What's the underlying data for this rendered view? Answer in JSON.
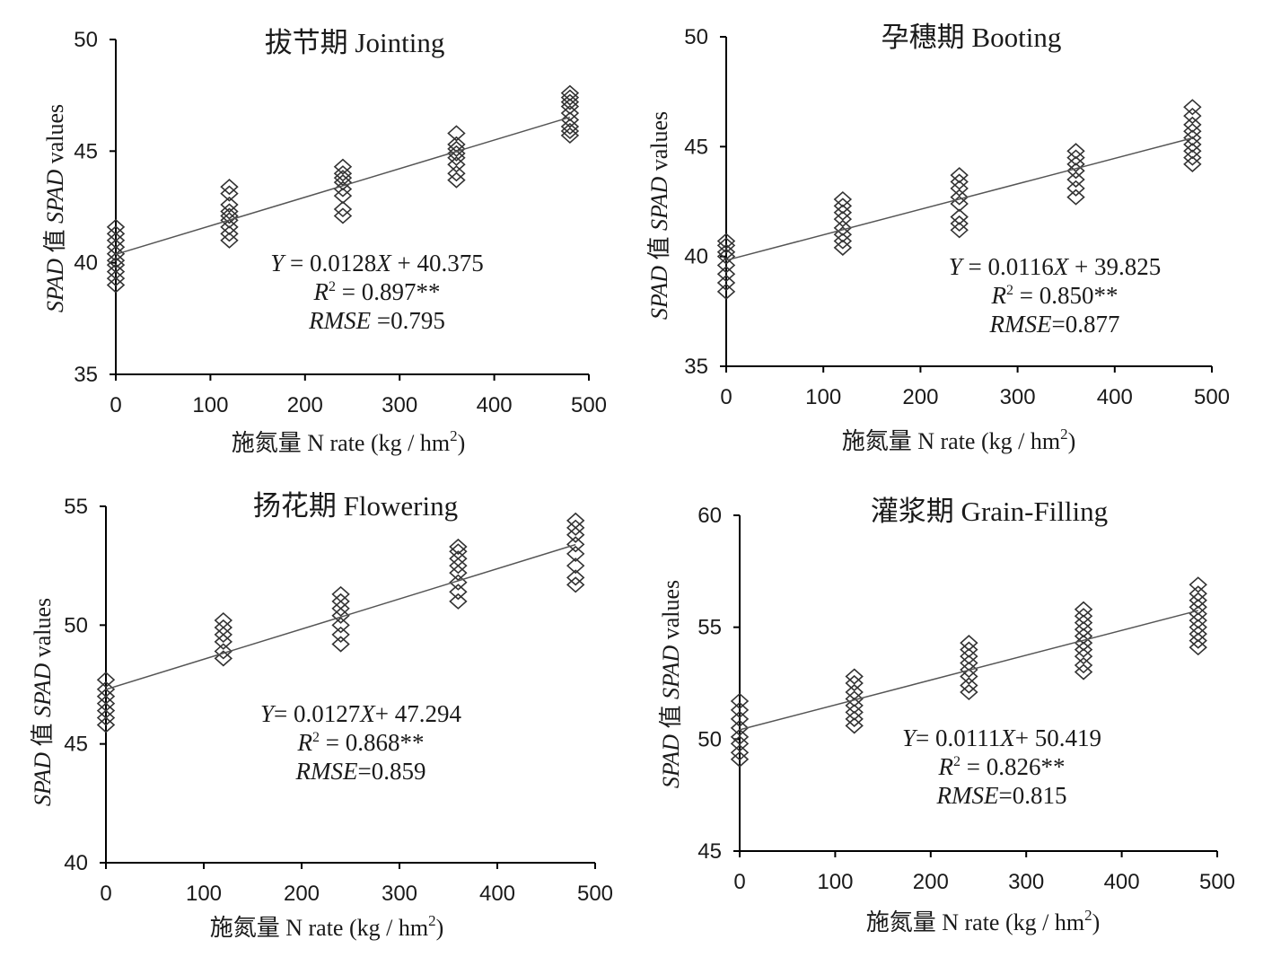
{
  "chart_data": [
    {
      "type": "scatter",
      "title": "拔节期  Jointing",
      "xlabel": {
        "prefix": "施氮量  N rate (kg / hm",
        "sup": "2",
        "suffix": ")"
      },
      "ylabel": {
        "italic1": "SPAD",
        "mid": " 值 ",
        "italic2": "SPAD",
        "tail": " values"
      },
      "xlim": [
        0,
        500
      ],
      "ylim": [
        35,
        50
      ],
      "xticks": [
        "0",
        "100",
        "200",
        "300",
        "400",
        "500"
      ],
      "yticks": [
        "35",
        "40",
        "45",
        "50"
      ],
      "equation": {
        "y": "Y",
        "eq": " = 0.0128",
        "x": "X",
        "rest": " + 40.375"
      },
      "r2": {
        "r": "R",
        "sup": "2",
        "rest": " = 0.897**"
      },
      "rmse": {
        "label": "RMSE",
        "rest": " =0.795"
      },
      "fit": {
        "slope": 0.0128,
        "intercept": 40.375
      },
      "series": [
        {
          "x": 0,
          "values": [
            39.0,
            39.3,
            39.6,
            39.9,
            40.1,
            40.4,
            40.7,
            41.0,
            41.3,
            41.6
          ]
        },
        {
          "x": 120,
          "values": [
            41.0,
            41.3,
            41.6,
            41.9,
            42.1,
            42.3,
            42.6,
            43.1,
            43.4
          ]
        },
        {
          "x": 240,
          "values": [
            42.1,
            42.4,
            43.0,
            43.3,
            43.6,
            43.8,
            44.0,
            44.3
          ]
        },
        {
          "x": 360,
          "values": [
            43.7,
            44.0,
            44.4,
            44.7,
            44.9,
            45.1,
            45.3,
            45.8
          ]
        },
        {
          "x": 480,
          "values": [
            45.7,
            45.9,
            46.1,
            46.4,
            46.7,
            47.0,
            47.2,
            47.4,
            47.6
          ]
        }
      ]
    },
    {
      "type": "scatter",
      "title": "孕穗期  Booting",
      "xlabel": {
        "prefix": "施氮量  N rate (kg / hm",
        "sup": "2",
        "suffix": ")"
      },
      "ylabel": {
        "italic1": "SPAD",
        "mid": " 值 ",
        "italic2": "SPAD",
        "tail": " values"
      },
      "xlim": [
        0,
        500
      ],
      "ylim": [
        35,
        50
      ],
      "xticks": [
        "0",
        "100",
        "200",
        "300",
        "400",
        "500"
      ],
      "yticks": [
        "35",
        "40",
        "45",
        "50"
      ],
      "equation": {
        "y": "Y",
        "eq": " = 0.0116",
        "x": "X",
        "rest": " + 39.825"
      },
      "r2": {
        "r": "R",
        "sup": "2",
        "rest": " = 0.850**"
      },
      "rmse": {
        "label": "RMSE",
        "rest": "=0.877"
      },
      "fit": {
        "slope": 0.0116,
        "intercept": 39.825
      },
      "series": [
        {
          "x": 0,
          "values": [
            38.4,
            38.8,
            39.2,
            39.6,
            40.0,
            40.2,
            40.5,
            40.7
          ]
        },
        {
          "x": 120,
          "values": [
            40.4,
            40.7,
            41.0,
            41.3,
            41.7,
            42.0,
            42.3,
            42.6
          ]
        },
        {
          "x": 240,
          "values": [
            41.2,
            41.5,
            41.8,
            42.4,
            42.7,
            43.1,
            43.4,
            43.7
          ]
        },
        {
          "x": 360,
          "values": [
            42.7,
            43.1,
            43.5,
            43.9,
            44.2,
            44.5,
            44.8
          ]
        },
        {
          "x": 480,
          "values": [
            44.2,
            44.5,
            44.8,
            45.1,
            45.4,
            45.7,
            46.0,
            46.4,
            46.8
          ]
        }
      ]
    },
    {
      "type": "scatter",
      "title": "扬花期  Flowering",
      "xlabel": {
        "prefix": "施氮量  N rate (kg / hm",
        "sup": "2",
        "suffix": ")"
      },
      "ylabel": {
        "italic1": "SPAD",
        "mid": " 值 ",
        "italic2": "SPAD",
        "tail": " values"
      },
      "xlim": [
        0,
        500
      ],
      "ylim": [
        40,
        55
      ],
      "xticks": [
        "0",
        "100",
        "200",
        "300",
        "400",
        "500"
      ],
      "yticks": [
        "40",
        "45",
        "50",
        "55"
      ],
      "equation": {
        "y": "Y",
        "eq": "= 0.0127",
        "x": "X",
        "rest": "+ 47.294"
      },
      "r2": {
        "r": "R",
        "sup": "2",
        "rest": " = 0.868**"
      },
      "rmse": {
        "label": "RMSE",
        "rest": "=0.859"
      },
      "fit": {
        "slope": 0.0127,
        "intercept": 47.294
      },
      "series": [
        {
          "x": 0,
          "values": [
            45.8,
            46.1,
            46.4,
            46.7,
            47.0,
            47.3,
            47.7
          ]
        },
        {
          "x": 120,
          "values": [
            48.6,
            48.9,
            49.3,
            49.6,
            49.9,
            50.2
          ]
        },
        {
          "x": 240,
          "values": [
            49.2,
            49.6,
            50.0,
            50.4,
            50.7,
            51.0,
            51.3
          ]
        },
        {
          "x": 360,
          "values": [
            51.0,
            51.4,
            51.8,
            52.2,
            52.5,
            52.8,
            53.1,
            53.3
          ]
        },
        {
          "x": 480,
          "values": [
            51.7,
            52.0,
            52.5,
            53.0,
            53.4,
            53.8,
            54.1,
            54.4
          ]
        }
      ]
    },
    {
      "type": "scatter",
      "title": "灌浆期  Grain-Filling",
      "xlabel": {
        "prefix": "施氮量  N rate (kg / hm",
        "sup": "2",
        "suffix": ")"
      },
      "ylabel": {
        "italic1": "SPAD",
        "mid": " 值 ",
        "italic2": "SPAD",
        "tail": " values"
      },
      "xlim": [
        0,
        500
      ],
      "ylim": [
        45,
        60
      ],
      "xticks": [
        "0",
        "100",
        "200",
        "300",
        "400",
        "500"
      ],
      "yticks": [
        "45",
        "50",
        "55",
        "60"
      ],
      "equation": {
        "y": "Y",
        "eq": "= 0.0111",
        "x": "X",
        "rest": "+ 50.419"
      },
      "r2": {
        "r": "R",
        "sup": "2",
        "rest": " = 0.826**"
      },
      "rmse": {
        "label": "RMSE",
        "rest": "=0.815"
      },
      "fit": {
        "slope": 0.0111,
        "intercept": 50.419
      },
      "series": [
        {
          "x": 0,
          "values": [
            49.1,
            49.4,
            49.8,
            50.1,
            50.5,
            50.9,
            51.3,
            51.7
          ]
        },
        {
          "x": 120,
          "values": [
            50.6,
            50.9,
            51.2,
            51.5,
            51.8,
            52.1,
            52.5,
            52.8
          ]
        },
        {
          "x": 240,
          "values": [
            52.1,
            52.4,
            52.8,
            53.1,
            53.4,
            53.7,
            54.0,
            54.3
          ]
        },
        {
          "x": 360,
          "values": [
            53.0,
            53.3,
            53.7,
            54.0,
            54.3,
            54.6,
            54.9,
            55.2,
            55.5,
            55.8
          ]
        },
        {
          "x": 480,
          "values": [
            54.1,
            54.4,
            54.7,
            55.0,
            55.3,
            55.6,
            55.9,
            56.2,
            56.5,
            56.9
          ]
        }
      ]
    }
  ]
}
